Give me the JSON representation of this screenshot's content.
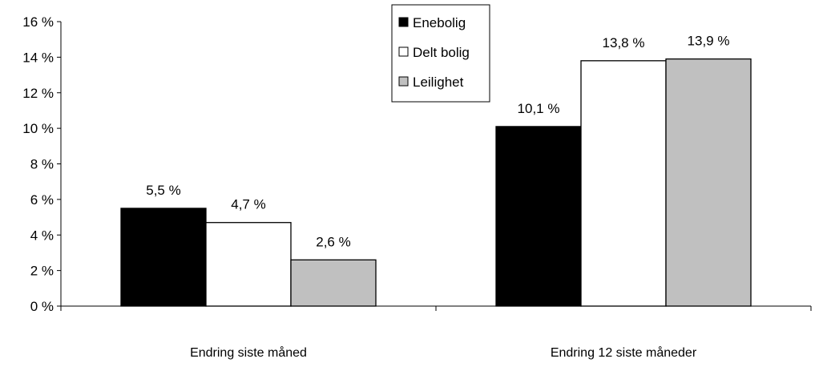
{
  "chart_data": {
    "type": "bar",
    "title": "",
    "xlabel": "",
    "ylabel": "",
    "categories": [
      "Endring siste måned",
      "Endring 12 siste måneder"
    ],
    "series": [
      {
        "name": "Enebolig",
        "values": [
          5.5,
          10.1
        ],
        "labels": [
          "5,5 %",
          "10,1 %"
        ],
        "color": "#000000"
      },
      {
        "name": "Delt bolig",
        "values": [
          4.7,
          13.8
        ],
        "labels": [
          "4,7 %",
          "13,8 %"
        ],
        "color": "#ffffff"
      },
      {
        "name": "Leilighet",
        "values": [
          2.6,
          13.9
        ],
        "labels": [
          "2,6 %",
          "13,9 %"
        ],
        "color": "#c0c0c0"
      }
    ],
    "ylim": [
      0,
      16
    ],
    "yticks": [
      0,
      2,
      4,
      6,
      8,
      10,
      12,
      14,
      16
    ],
    "ytick_labels": [
      "0 %",
      "2 %",
      "4 %",
      "6 %",
      "8 %",
      "10 %",
      "12 %",
      "14 %",
      "16 %"
    ],
    "grid": false,
    "legend_position": "top-center"
  }
}
